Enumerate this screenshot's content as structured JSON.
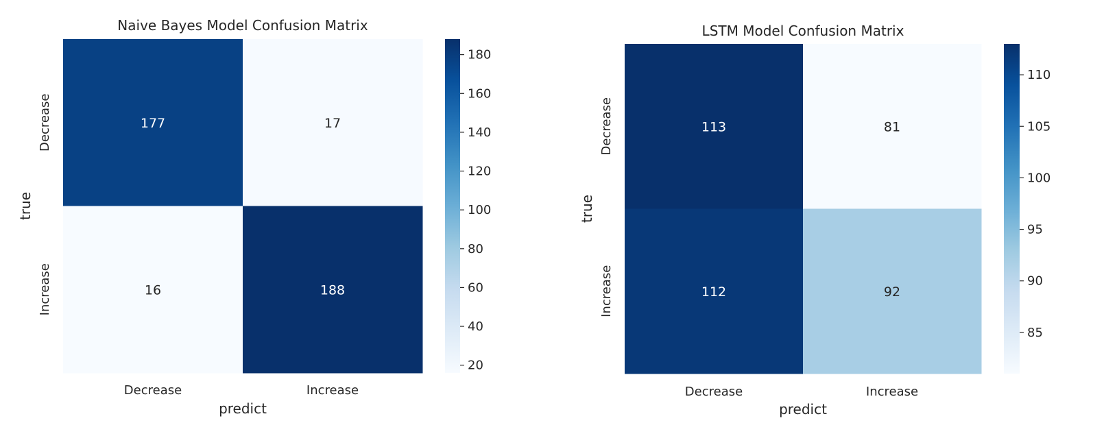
{
  "chart_data": [
    {
      "type": "heatmap",
      "title": "Naive Bayes Model Confusion Matrix",
      "xlabel": "predict",
      "ylabel": "true",
      "x_categories": [
        "Decrease",
        "Increase"
      ],
      "y_categories": [
        "Decrease",
        "Increase"
      ],
      "values": [
        [
          177,
          17
        ],
        [
          16,
          188
        ]
      ],
      "colorbar": {
        "range": [
          16,
          188
        ],
        "ticks": [
          20,
          40,
          60,
          80,
          100,
          120,
          140,
          160,
          180
        ],
        "colormap": "Blues"
      }
    },
    {
      "type": "heatmap",
      "title": "LSTM Model Confusion Matrix",
      "xlabel": "predict",
      "ylabel": "true",
      "x_categories": [
        "Decrease",
        "Increase"
      ],
      "y_categories": [
        "Decrease",
        "Increase"
      ],
      "values": [
        [
          113,
          81
        ],
        [
          112,
          92
        ]
      ],
      "colorbar": {
        "range": [
          81,
          113
        ],
        "ticks": [
          85,
          90,
          95,
          100,
          105,
          110
        ],
        "colormap": "Blues"
      }
    }
  ]
}
